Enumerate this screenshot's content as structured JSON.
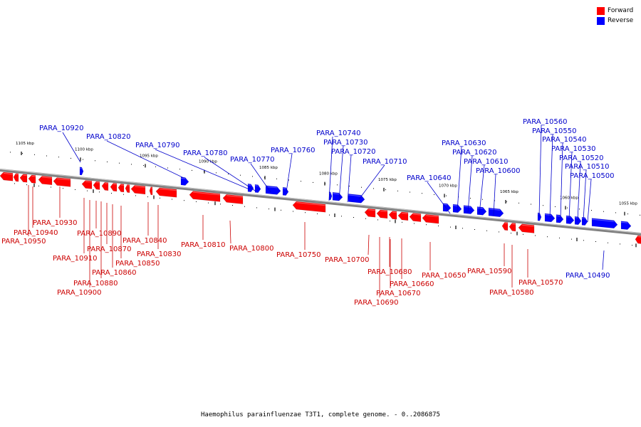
{
  "caption": "Haemophilus parainfluenzae T3T1, complete genome. - 0..2086875",
  "legend": {
    "forward_label": "Forward",
    "reverse_label": "Reverse",
    "forward_color": "#ff0000",
    "reverse_color": "#0000ff"
  },
  "colors": {
    "backbone": "#808080",
    "forward_label": "#cc0000",
    "reverse_label": "#0000cc"
  },
  "ruler_labels": [
    "1105 kbp",
    "1100 kbp",
    "1095 kbp",
    "1090 kbp",
    "1085 kbp",
    "1080 kbp",
    "1075 kbp",
    "1070 kbp",
    "1065 kbp",
    "1060 kbp",
    "1055 kbp"
  ],
  "reverse_labels": [
    "PARA_10920",
    "PARA_10820",
    "PARA_10790",
    "PARA_10780",
    "PARA_10770",
    "PARA_10760",
    "PARA_10740",
    "PARA_10730",
    "PARA_10720",
    "PARA_10710",
    "PARA_10640",
    "PARA_10630",
    "PARA_10620",
    "PARA_10610",
    "PARA_10600",
    "PARA_10560",
    "PARA_10550",
    "PARA_10540",
    "PARA_10530",
    "PARA_10520",
    "PARA_10510",
    "PARA_10500",
    "PARA_10490"
  ],
  "forward_labels": [
    "PARA_10930",
    "PARA_10940",
    "PARA_10950",
    "PARA_10890",
    "PARA_10910",
    "PARA_10870",
    "PARA_10880",
    "PARA_10900",
    "PARA_10850",
    "PARA_10860",
    "PARA_10840",
    "PARA_10830",
    "PARA_10810",
    "PARA_10800",
    "PARA_10750",
    "PARA_10700",
    "PARA_10680",
    "PARA_10660",
    "PARA_10670",
    "PARA_10690",
    "PARA_10650",
    "PARA_10590",
    "PARA_10580",
    "PARA_10570"
  ]
}
